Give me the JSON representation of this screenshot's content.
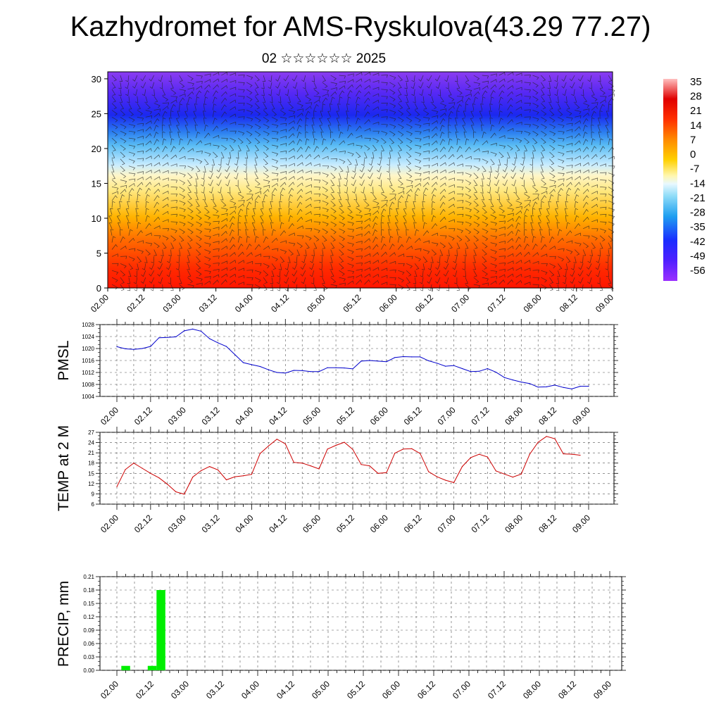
{
  "title": "Kazhydromet for AMS-Ryskulova(43.29 77.27)",
  "subtitle": "02 ☆☆☆☆☆☆ 2025",
  "time_labels": [
    "02.00",
    "02.12",
    "03.00",
    "03.12",
    "04.00",
    "04.12",
    "05.00",
    "05.12",
    "06.00",
    "06.12",
    "07.00",
    "07.12",
    "08.00",
    "08.12",
    "09.00"
  ],
  "chart_data": [
    {
      "type": "heatmap",
      "description_kind": "height-time temperature cross-section with wind barbs",
      "y_ticks": [
        0,
        5,
        10,
        15,
        20,
        25,
        30
      ],
      "ylim": [
        0,
        31
      ],
      "x_ticks": [
        "02.00",
        "02.12",
        "03.00",
        "03.12",
        "04.00",
        "04.12",
        "05.00",
        "05.12",
        "06.00",
        "06.12",
        "07.00",
        "07.12",
        "08.00",
        "08.12",
        "09.00"
      ],
      "colorbar": {
        "ticks": [
          "35",
          "28",
          "21",
          "14",
          "7",
          "0",
          "-7",
          "-14",
          "-21",
          "-28",
          "-35",
          "-42",
          "-49",
          "-56"
        ],
        "range": [
          -63,
          38
        ]
      }
    },
    {
      "type": "line",
      "ylabel": "PMSL",
      "color": "#0000cc",
      "ylim": [
        1004,
        1028
      ],
      "y_ticks": [
        1004,
        1008,
        1012,
        1016,
        1020,
        1024,
        1028
      ],
      "x_ticks": [
        "02.00",
        "02.12",
        "03.00",
        "03.12",
        "04.00",
        "04.12",
        "05.00",
        "05.12",
        "06.00",
        "06.12",
        "07.00",
        "07.12",
        "08.00",
        "08.12",
        "09.00"
      ],
      "x": [
        0,
        3,
        6,
        9,
        12,
        15,
        18,
        21,
        24,
        27,
        30,
        33,
        36,
        39,
        42,
        45,
        48,
        51,
        54,
        57,
        60,
        63,
        66,
        69,
        72,
        75,
        78,
        81,
        84,
        87,
        90,
        93,
        96,
        99,
        102,
        105,
        108,
        111,
        114,
        117,
        120,
        123,
        126,
        129,
        132,
        135,
        138,
        141,
        144,
        147,
        150,
        153,
        156,
        159,
        162,
        165,
        168
      ],
      "values": [
        1020.6,
        1019.9,
        1019.7,
        1020.0,
        1020.7,
        1023.6,
        1023.7,
        1023.9,
        1025.9,
        1026.5,
        1025.8,
        1023.3,
        1021.9,
        1020.7,
        1018.0,
        1015.3,
        1014.6,
        1014.0,
        1012.9,
        1012.0,
        1011.8,
        1012.7,
        1012.6,
        1012.3,
        1012.3,
        1013.6,
        1013.6,
        1013.5,
        1013.2,
        1015.8,
        1016.0,
        1015.8,
        1015.6,
        1017.0,
        1017.3,
        1017.2,
        1017.2,
        1015.9,
        1015.1,
        1014.1,
        1014.3,
        1013.3,
        1012.3,
        1012.4,
        1013.3,
        1012.1,
        1010.3,
        1009.5,
        1008.8,
        1008.3,
        1007.1,
        1007.2,
        1007.8,
        1007.0,
        1006.5,
        1007.4,
        1007.4
      ]
    },
    {
      "type": "line",
      "ylabel": "TEMP at 2 M",
      "color": "#cc0000",
      "ylim": [
        6,
        27
      ],
      "y_ticks": [
        6,
        9,
        12,
        15,
        18,
        21,
        24,
        27
      ],
      "x_ticks": [
        "02.00",
        "02.12",
        "03.00",
        "03.12",
        "04.00",
        "04.12",
        "05.00",
        "05.12",
        "06.00",
        "06.12",
        "07.00",
        "07.12",
        "08.00",
        "08.12",
        "09.00"
      ],
      "x": [
        0,
        3,
        6,
        9,
        12,
        15,
        18,
        21,
        24,
        27,
        30,
        33,
        36,
        39,
        42,
        45,
        48,
        51,
        54,
        57,
        60,
        63,
        66,
        69,
        72,
        75,
        78,
        81,
        84,
        87,
        90,
        93,
        96,
        99,
        102,
        105,
        108,
        111,
        114,
        117,
        120,
        123,
        126,
        129,
        132,
        135,
        138,
        141,
        144,
        147,
        150,
        153,
        156,
        159,
        162,
        165
      ],
      "values": [
        11.1,
        16.1,
        18.0,
        16.5,
        15.0,
        13.7,
        11.8,
        9.6,
        8.9,
        13.9,
        15.8,
        17.0,
        16.0,
        13.1,
        14.0,
        14.3,
        14.7,
        20.8,
        23.0,
        25.0,
        23.6,
        18.2,
        18.0,
        17.2,
        16.3,
        22.1,
        23.2,
        24.1,
        22.0,
        17.6,
        17.2,
        15.0,
        15.2,
        20.9,
        22.1,
        22.2,
        20.8,
        15.5,
        14.0,
        13.0,
        12.3,
        17.0,
        19.6,
        20.6,
        19.8,
        15.7,
        14.8,
        13.9,
        14.8,
        20.6,
        24.1,
        25.8,
        25.1,
        20.7,
        20.6,
        20.3
      ]
    },
    {
      "type": "bar",
      "ylabel": "PRECIP, mm",
      "color": "#00ee00",
      "ylim": [
        0,
        0.21
      ],
      "y_ticks": [
        "0.00",
        "0.03",
        "0.06",
        "0.09",
        "0.12",
        "0.15",
        "0.18",
        "0.21"
      ],
      "x_ticks": [
        "02.00",
        "02.12",
        "03.00",
        "03.12",
        "04.00",
        "04.12",
        "05.00",
        "05.12",
        "06.00",
        "06.12",
        "07.00",
        "07.12",
        "08.00",
        "08.12",
        "09.00"
      ],
      "x": [
        3,
        12,
        15
      ],
      "values": [
        0.01,
        0.01,
        0.18
      ]
    }
  ]
}
